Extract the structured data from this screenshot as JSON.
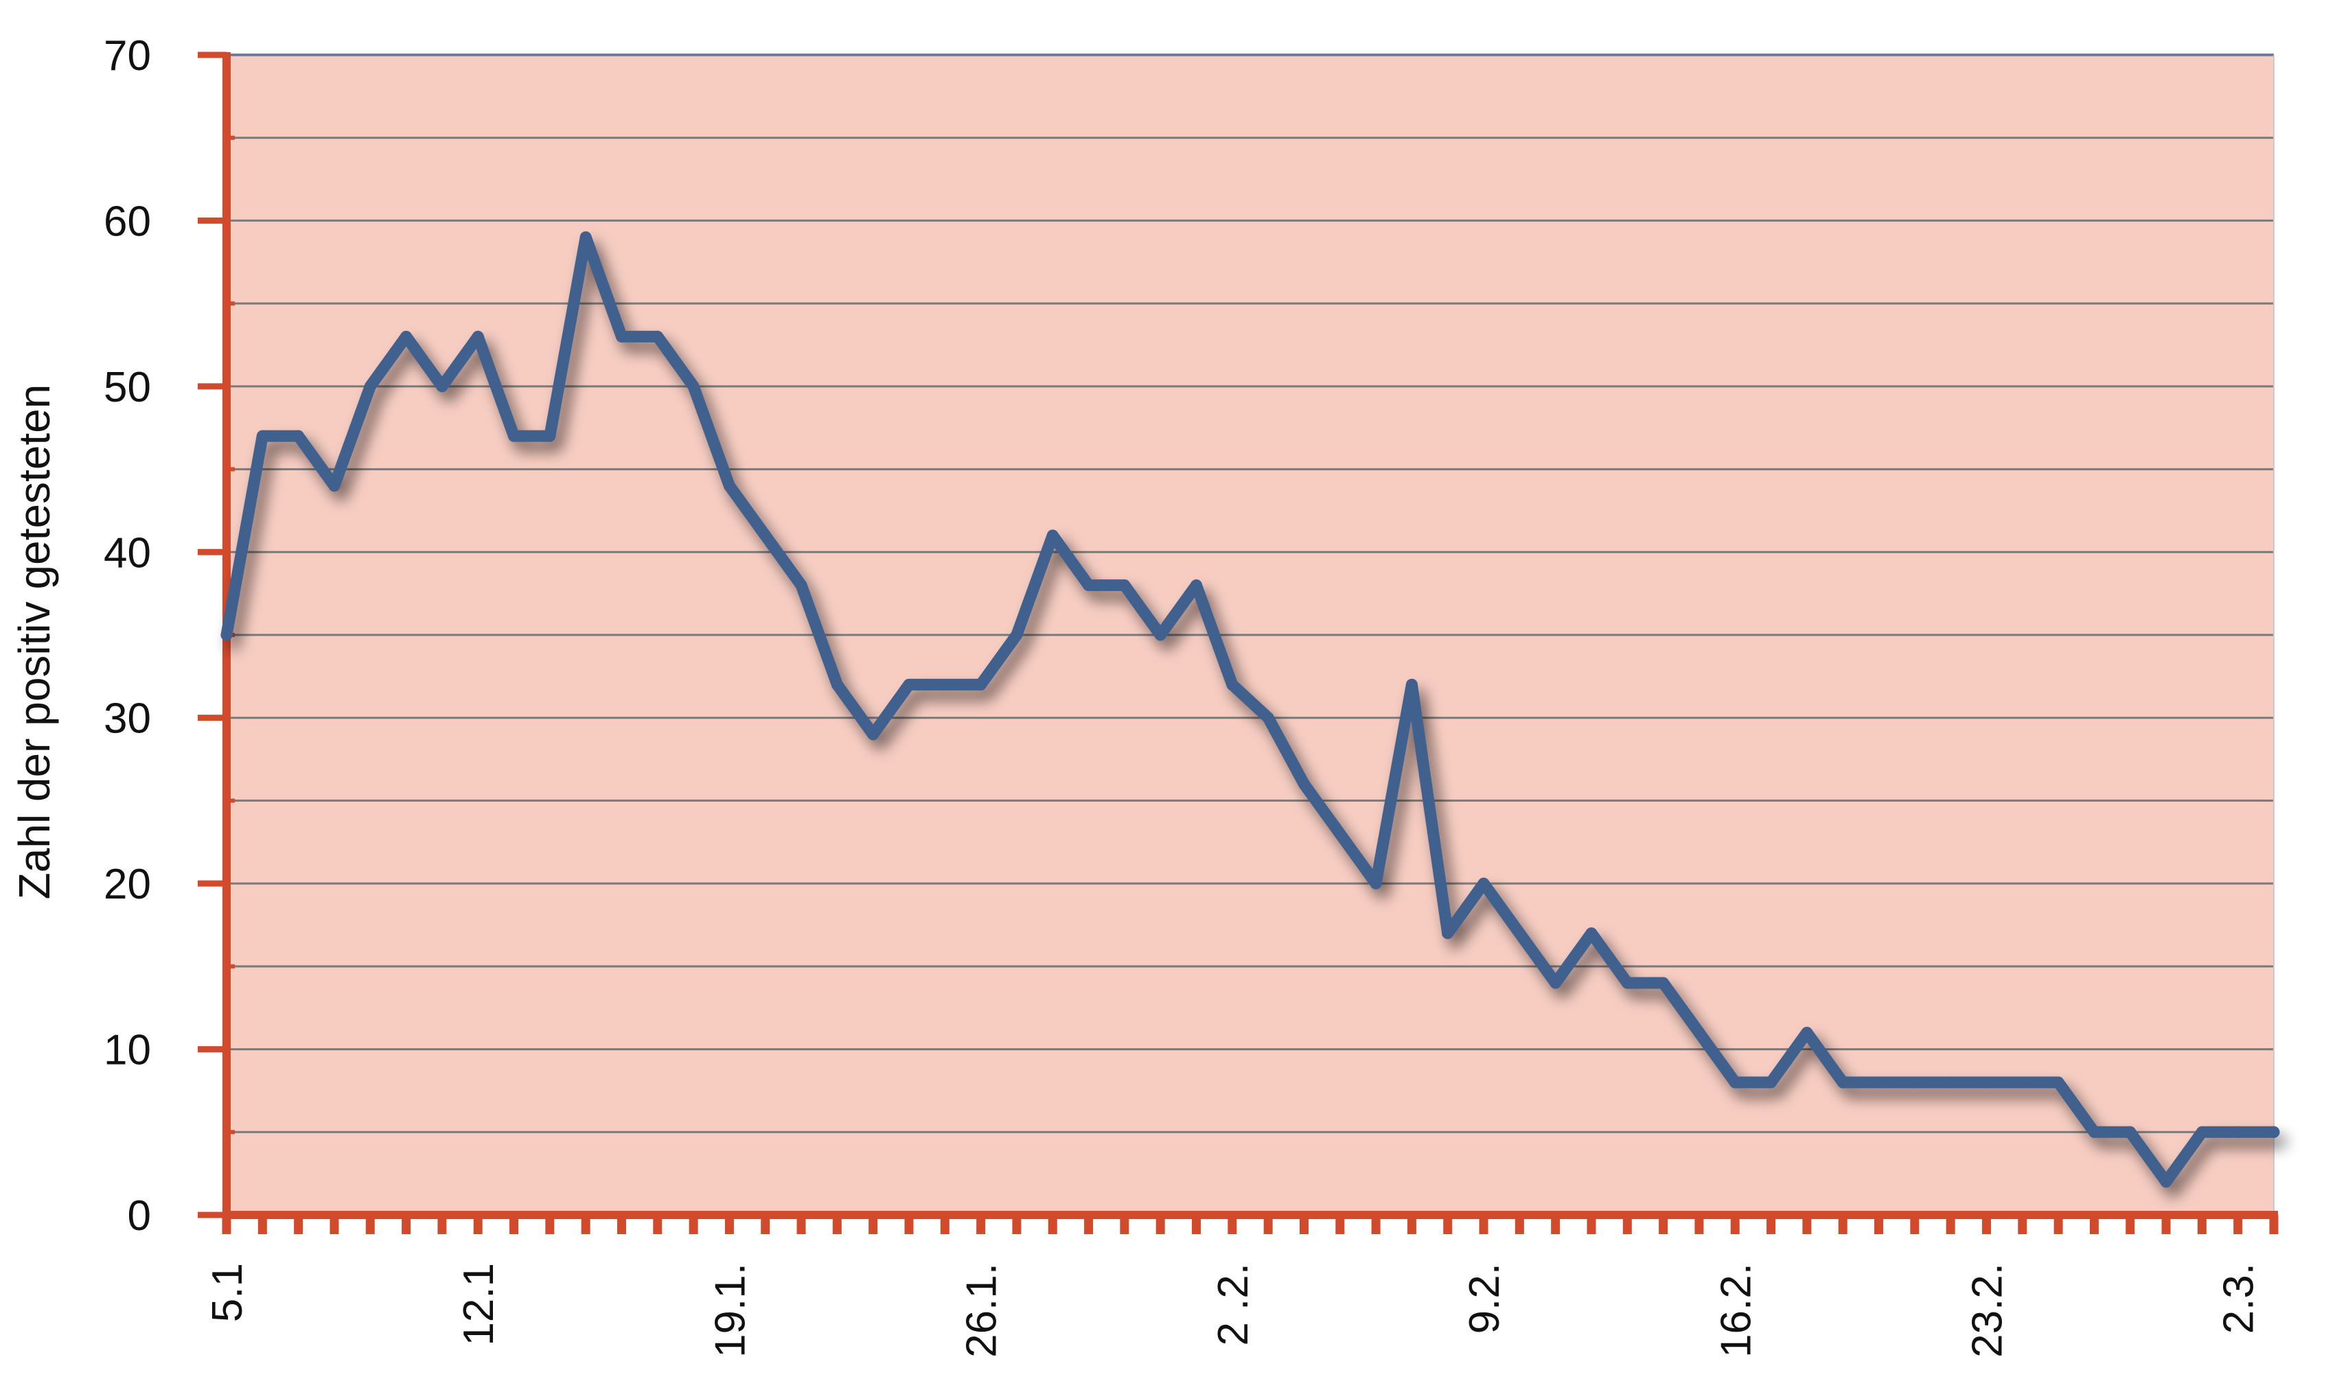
{
  "chart_data": {
    "type": "line",
    "ylabel": "Zahl der positiv getesteten",
    "xlabel": "",
    "title": "",
    "ylim": [
      0,
      70
    ],
    "yticks": [
      0,
      10,
      20,
      30,
      40,
      50,
      60,
      70
    ],
    "grid": true,
    "x_tick_labels": [
      {
        "index": 0,
        "label": "5.1"
      },
      {
        "index": 7,
        "label": "12.1"
      },
      {
        "index": 14,
        "label": "19.1."
      },
      {
        "index": 21,
        "label": "26.1."
      },
      {
        "index": 28,
        "label": "2 .2."
      },
      {
        "index": 35,
        "label": "9.2."
      },
      {
        "index": 42,
        "label": "16.2."
      },
      {
        "index": 49,
        "label": "23.2."
      },
      {
        "index": 56,
        "label": "2.3."
      }
    ],
    "series": [
      {
        "values": [
          35,
          47,
          47,
          44,
          50,
          53,
          50,
          53,
          47,
          47,
          59,
          53,
          53,
          50,
          44,
          41,
          38,
          32,
          29,
          32,
          32,
          32,
          35,
          41,
          38,
          38,
          35,
          38,
          32,
          30,
          26,
          23,
          20,
          32,
          17,
          20,
          17,
          14,
          17,
          14,
          14,
          11,
          8,
          8,
          11,
          8,
          8,
          8,
          8,
          8,
          8,
          8,
          5,
          5,
          2,
          5,
          5,
          5
        ]
      }
    ],
    "colors": {
      "plot_background": "#f7cdc2",
      "axis": "#d24a2c",
      "gridline": "#7a7a7a",
      "line": "#41608e",
      "top_border": "#6a7fa6"
    }
  }
}
